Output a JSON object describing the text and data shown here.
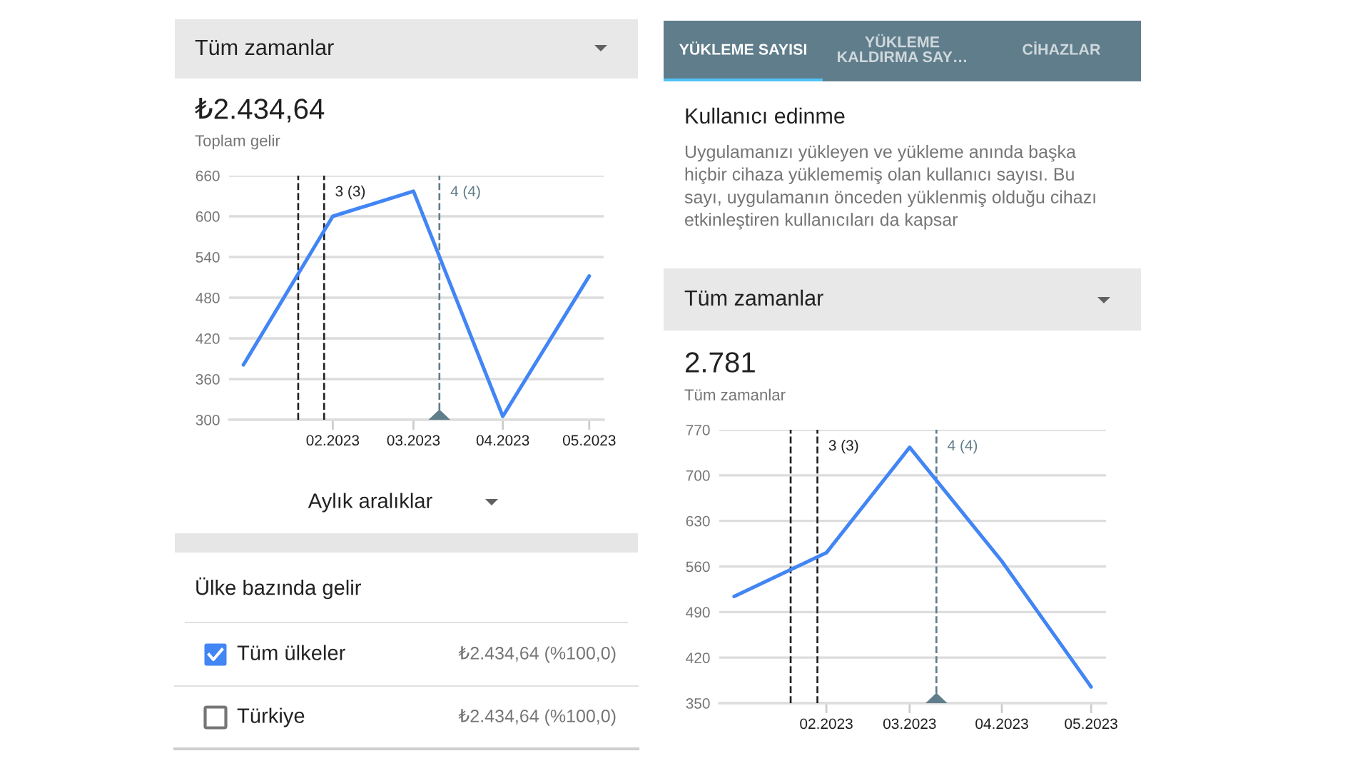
{
  "chart_data": [
    {
      "type": "line",
      "title": "₺2.434,64",
      "subtitle": "Toplam gelir",
      "annotations": [
        "Tüm zamanlar",
        "Aylık aralıklar"
      ],
      "x": [
        "2023-01-01",
        "2023-02-01",
        "2023-03-01",
        "2023-04-01",
        "2023-05-01"
      ],
      "series": [
        {
          "color": "#4285f4",
          "values": [
            381,
            600,
            637,
            305,
            512
          ]
        }
      ],
      "xlim": [
        "2022-12-27",
        "2023-05-06"
      ],
      "xticks": [
        {
          "value": "2023-02-01",
          "label": "02.2023"
        },
        {
          "value": "2023-03-01",
          "label": "03.2023"
        },
        {
          "value": "2023-04-01",
          "label": "04.2023"
        },
        {
          "value": "2023-05-01",
          "label": "05.2023"
        }
      ],
      "ylim": [
        300,
        660
      ],
      "yticks": [
        300,
        360,
        420,
        480,
        540,
        600,
        660
      ],
      "grid": "y",
      "ref_lines": [
        {
          "axis": "x",
          "value": "2023-01-20",
          "label": null,
          "color": "#212121",
          "line_style": "dashed"
        },
        {
          "axis": "x",
          "value": "2023-01-29",
          "label": "3 (3)",
          "color": "#212121",
          "line_style": "dashed"
        },
        {
          "axis": "x",
          "value": "2023-03-10",
          "label": "4 (4)",
          "color": "#607d8b",
          "line_style": "dashed"
        }
      ]
    },
    {
      "type": "other",
      "title": "Ülke bazında gelir",
      "categories": [
        "Tüm ülkeler",
        "Türkiye"
      ],
      "annotations": [
        "₺2.434,64 (%100,0)",
        "₺2.434,64 (%100,0)"
      ]
    },
    {
      "type": "other",
      "categories": [
        "YÜKLEME SAYISI",
        "YÜKLEME\nKALDIRMA SAY…",
        "CİHAZLAR"
      ],
      "title": "Kullanıcı edinme",
      "subtitle": "Uygulamanızı yükleyen ve yükleme anında başka\nhiçbir cihaza yüklememiş olan kullanıcı sayısı. Bu\nsayı, uygulamanın önceden yüklenmiş olduğu cihazı\netkinleştiren kullanıcıları da kapsar"
    },
    {
      "type": "line",
      "title": "2.781",
      "subtitle": "Tüm zamanlar",
      "annotations": [
        "Tüm zamanlar"
      ],
      "x": [
        "2023-01-01",
        "2023-02-01",
        "2023-03-01",
        "2023-04-01",
        "2023-05-01"
      ],
      "series": [
        {
          "color": "#4285f4",
          "values": [
            514,
            581,
            743,
            568,
            375
          ]
        }
      ],
      "xlim": [
        "2022-12-27",
        "2023-05-06"
      ],
      "xticks": [
        {
          "value": "2023-02-01",
          "label": "02.2023"
        },
        {
          "value": "2023-03-01",
          "label": "03.2023"
        },
        {
          "value": "2023-04-01",
          "label": "04.2023"
        },
        {
          "value": "2023-05-01",
          "label": "05.2023"
        }
      ],
      "ylim": [
        350,
        770
      ],
      "yticks": [
        350,
        420,
        490,
        560,
        630,
        700,
        770
      ],
      "grid": "y",
      "ref_lines": [
        {
          "axis": "x",
          "value": "2023-01-20",
          "label": null,
          "color": "#212121",
          "line_style": "dashed"
        },
        {
          "axis": "x",
          "value": "2023-01-29",
          "label": "3 (3)",
          "color": "#212121",
          "line_style": "dashed"
        },
        {
          "axis": "x",
          "value": "2023-03-10",
          "label": "4 (4)",
          "color": "#607d8b",
          "line_style": "dashed"
        }
      ]
    }
  ]
}
